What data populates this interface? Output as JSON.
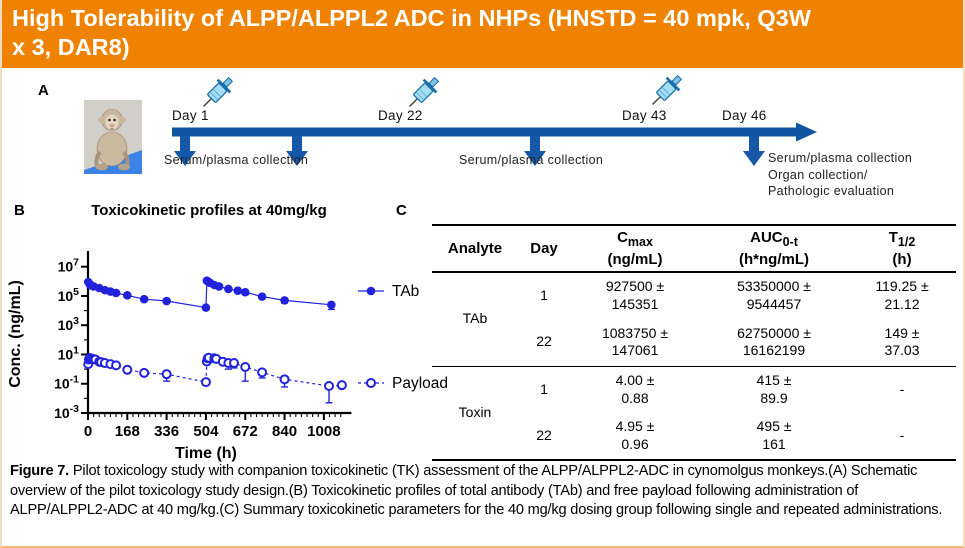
{
  "colors": {
    "header_bg": "#EF8200",
    "header_text": "#FFFFFF",
    "timeline_blue": "#0F55A2",
    "chart_blue": "#2222DD",
    "page_border": "#F6DCC2"
  },
  "header": {
    "title": "High Tolerability of ALPP/ALPPL2 ADC in NHPs (HNSTD = 40 mpk, Q3W x 3, DAR8)",
    "title_line1": "High Tolerability of ALPP/ALPPL2 ADC in NHPs (HNSTD = 40 mpk, Q3W",
    "title_line2": "x 3, DAR8)"
  },
  "panelA": {
    "label": "A",
    "timeline": {
      "day_labels": [
        "Day 1",
        "Day 22",
        "Day 43",
        "Day 46"
      ],
      "collection_labels": [
        "Serum/plasma collection",
        "Serum/plasma collection",
        "Serum/plasma collection\nOrgan collection/\nPathologic evaluation"
      ]
    }
  },
  "panelB": {
    "label": "B",
    "title": "Toxicokinetic profiles at 40mg/kg"
  },
  "chart_data": {
    "type": "line",
    "title": "Toxicokinetic profiles at 40mg/kg",
    "xlabel": "Time (h)",
    "ylabel": "Conc. (ng/mL)",
    "x_ticks": [
      0,
      168,
      336,
      504,
      672,
      840,
      1008
    ],
    "x_minor_step": 24,
    "xlim": [
      0,
      1100
    ],
    "y_scale": "log",
    "y_tick_exponents": [
      7,
      5,
      3,
      1,
      -1,
      -3
    ],
    "y_minor_exponents": [
      6,
      4,
      2,
      0,
      -2
    ],
    "ylim_exponents": [
      -3,
      7.8
    ],
    "grid": false,
    "legend_position": "right",
    "color": "#2222DD",
    "series": [
      {
        "name": "TAb",
        "marker": "filled-circle",
        "line": "solid",
        "points": [
          [
            1,
            900000
          ],
          [
            8,
            600000
          ],
          [
            16,
            500000
          ],
          [
            24,
            450000
          ],
          [
            48,
            350000
          ],
          [
            72,
            250000
          ],
          [
            96,
            200000
          ],
          [
            120,
            160000
          ],
          [
            168,
            110000
          ],
          [
            240,
            60000
          ],
          [
            336,
            45000
          ],
          [
            504,
            16000
          ],
          [
            508,
            1100000
          ],
          [
            514,
            950000
          ],
          [
            522,
            780000
          ],
          [
            540,
            560000
          ],
          [
            560,
            450000
          ],
          [
            600,
            300000
          ],
          [
            640,
            230000
          ],
          [
            672,
            180000
          ],
          [
            744,
            90000
          ],
          [
            840,
            50000
          ],
          [
            1040,
            25000
          ]
        ],
        "error_low": [
          [
            672,
            120000
          ],
          [
            840,
            33000
          ],
          [
            1040,
            12000
          ]
        ]
      },
      {
        "name": "Payload",
        "marker": "open-circle",
        "line": "dashed",
        "points": [
          [
            1,
            2.2
          ],
          [
            4,
            4.5
          ],
          [
            8,
            5.8
          ],
          [
            16,
            5.2
          ],
          [
            24,
            4.8
          ],
          [
            32,
            4.5
          ],
          [
            48,
            3.2
          ],
          [
            56,
            3.0
          ],
          [
            72,
            2.6
          ],
          [
            96,
            2.2
          ],
          [
            120,
            1.8
          ],
          [
            168,
            0.9
          ],
          [
            240,
            0.55
          ],
          [
            336,
            0.45
          ],
          [
            504,
            0.13
          ],
          [
            508,
            3.3
          ],
          [
            512,
            5.5
          ],
          [
            516,
            6.0
          ],
          [
            540,
            5.5
          ],
          [
            548,
            5.0
          ],
          [
            576,
            3.2
          ],
          [
            600,
            2.6
          ],
          [
            624,
            2.6
          ],
          [
            672,
            1.4
          ],
          [
            744,
            0.6
          ],
          [
            840,
            0.2
          ],
          [
            1030,
            0.07
          ],
          [
            1085,
            0.08
          ]
        ],
        "error_low": [
          [
            336,
            0.15
          ],
          [
            504,
            0.08
          ],
          [
            600,
            1.0
          ],
          [
            624,
            1.2
          ],
          [
            672,
            0.15
          ],
          [
            744,
            0.25
          ],
          [
            840,
            0.06
          ],
          [
            1030,
            0.005
          ]
        ]
      }
    ]
  },
  "panelC": {
    "label": "C",
    "table": {
      "columns": [
        {
          "main": "Analyte",
          "sub": "",
          "unit": ""
        },
        {
          "main": "Day",
          "sub": "",
          "unit": ""
        },
        {
          "main": "C",
          "sub": "max",
          "unit": "(ng/mL)"
        },
        {
          "main": "AUC",
          "sub": "0-t",
          "unit": "(h*ng/mL)"
        },
        {
          "main": "T",
          "sub": "1/2",
          "unit": "(h)"
        }
      ],
      "rows": [
        {
          "analyte": "TAb",
          "day": "1",
          "cmax": "927500 ±\n145351",
          "auc": "53350000 ±\n9544457",
          "t12": "119.25 ±\n21.12"
        },
        {
          "analyte": "",
          "day": "22",
          "cmax": "1083750 ±\n147061",
          "auc": "62750000 ±\n16162199",
          "t12": "149 ±\n37.03"
        },
        {
          "analyte": "Toxin",
          "day": "1",
          "cmax": "4.00 ±\n0.88",
          "auc": "415 ±\n89.9",
          "t12": "-"
        },
        {
          "analyte": "",
          "day": "22",
          "cmax": "4.95 ±\n0.96",
          "auc": "495 ±\n161",
          "t12": "-"
        }
      ]
    }
  },
  "caption": {
    "label": "Figure 7.",
    "text": "Pilot toxicology study with companion toxicokinetic (TK) assessment of the ALPP/ALPPL2-ADC in cynomolgus monkeys.(A) Schematic overview of the pilot toxicology study design.(B) Toxicokinetic profiles of total antibody (TAb) and free payload following administration of ALPP/ALPPL2-ADC at 40 mg/kg.(C) Summary toxicokinetic parameters for the 40 mg/kg dosing group following single and repeated administrations."
  }
}
